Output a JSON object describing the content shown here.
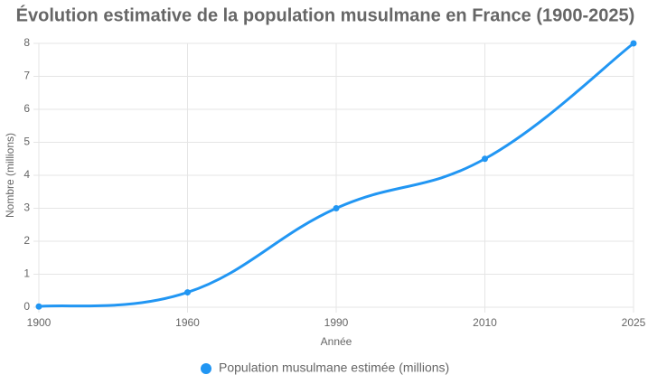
{
  "chart_data": {
    "type": "line",
    "title": "Évolution estimative de la population musulmane en France (1900-2025)",
    "categories": [
      "1900",
      "1960",
      "1990",
      "2010",
      "2025"
    ],
    "series": [
      {
        "name": "Population musulmane estimée (millions)",
        "color": "#2196F3",
        "values": [
          0.02,
          0.45,
          3,
          4.5,
          8
        ]
      }
    ],
    "xlabel": "Année",
    "ylabel": "Nombre (millions)",
    "ylim": [
      0,
      8
    ],
    "yticks": [
      0,
      1,
      2,
      3,
      4,
      5,
      6,
      7,
      8
    ],
    "grid": true,
    "legend": "bottom"
  }
}
